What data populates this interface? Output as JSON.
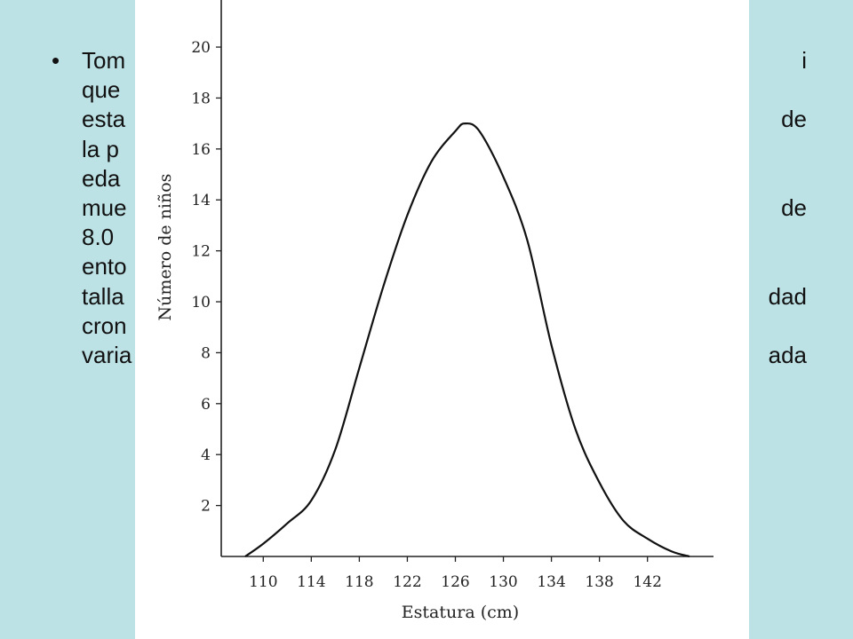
{
  "slide": {
    "bullet": "•",
    "lines": [
      {
        "text": "Tom",
        "align": "left",
        "top": 0
      },
      {
        "text": "i",
        "align": "right",
        "top": 0
      },
      {
        "text": "que",
        "align": "left",
        "top": 1
      },
      {
        "text": "esta",
        "align": "left",
        "top": 2
      },
      {
        "text": "de",
        "align": "right",
        "top": 2
      },
      {
        "text": "la p",
        "align": "left",
        "top": 3
      },
      {
        "text": "eda",
        "align": "left",
        "top": 4
      },
      {
        "text": "mue",
        "align": "left",
        "top": 5
      },
      {
        "text": "de",
        "align": "right",
        "top": 5
      },
      {
        "text": "8.0",
        "align": "left",
        "top": 6
      },
      {
        "text": "ento",
        "align": "left",
        "top": 7
      },
      {
        "text": "talla",
        "align": "left",
        "top": 8
      },
      {
        "text": "dad",
        "align": "right",
        "top": 8
      },
      {
        "text": "cron",
        "align": "left",
        "top": 9
      },
      {
        "text": "varia",
        "align": "left",
        "top": 10
      },
      {
        "text": "ada",
        "align": "right",
        "top": 10
      }
    ]
  },
  "chart_data": {
    "type": "line",
    "xlabel": "Estatura (cm)",
    "ylabel": "Número de niños",
    "x_ticks": [
      110,
      114,
      118,
      122,
      126,
      130,
      134,
      138,
      142
    ],
    "y_ticks": [
      2,
      4,
      6,
      8,
      10,
      12,
      14,
      16,
      18,
      20
    ],
    "xlim": [
      106.5,
      147.5
    ],
    "ylim": [
      0,
      21.5
    ],
    "series": [
      {
        "x": [
          108.5,
          110,
          112,
          114,
          116,
          118,
          120,
          122,
          124,
          126,
          126.8,
          128,
          130,
          132,
          134,
          136,
          138,
          140,
          142,
          144,
          145.5
        ],
        "y": [
          0,
          0.5,
          1.3,
          2.2,
          4.2,
          7.4,
          10.6,
          13.4,
          15.5,
          16.7,
          17.0,
          16.7,
          14.9,
          12.4,
          8.3,
          5.0,
          2.9,
          1.4,
          0.7,
          0.2,
          0
        ]
      }
    ],
    "grid": false
  }
}
